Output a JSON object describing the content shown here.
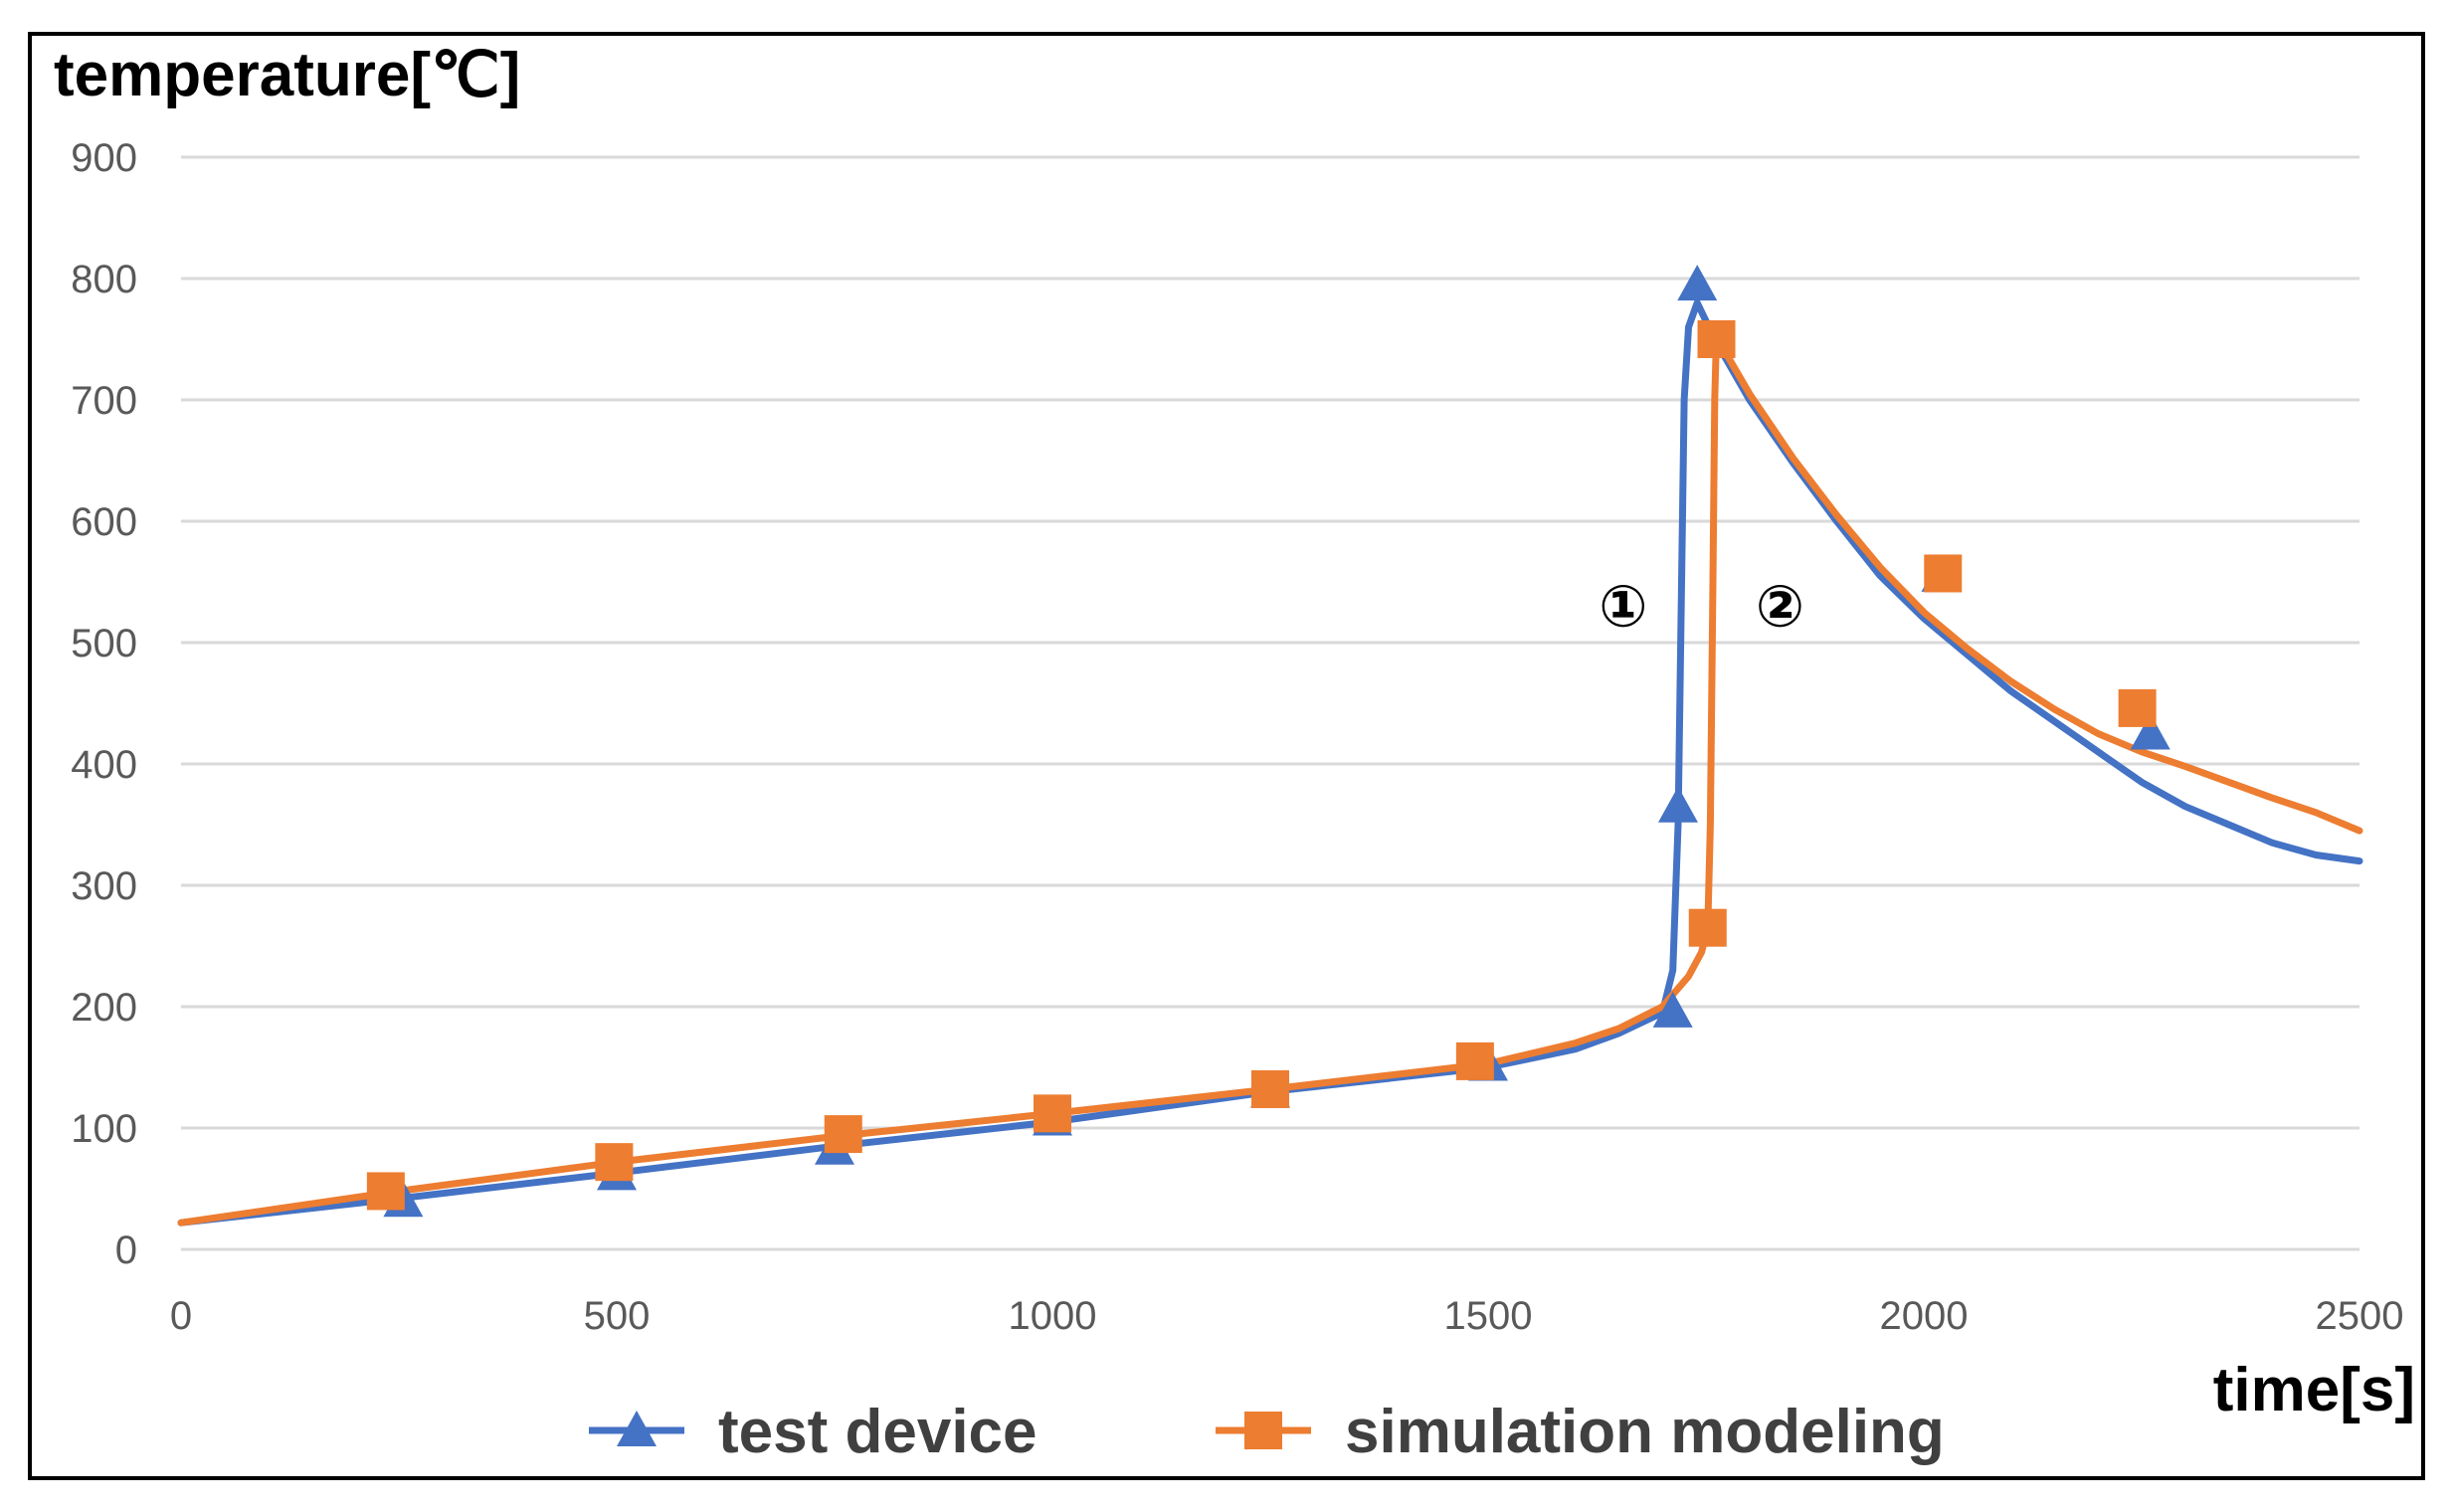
{
  "chart_data": {
    "type": "line",
    "ylabel": "temperature[℃]",
    "xlabel": "time[s]",
    "xlim": [
      0,
      2500
    ],
    "ylim": [
      0,
      900
    ],
    "xticks": [
      "0",
      "500",
      "1000",
      "1500",
      "2000",
      "2500"
    ],
    "yticks": [
      "0",
      "100",
      "200",
      "300",
      "400",
      "500",
      "600",
      "700",
      "800",
      "900"
    ],
    "grid": "horizontal",
    "legend_position": "bottom",
    "annotations": [
      {
        "text": "①",
        "x": 1655,
        "y": 530
      },
      {
        "text": "②",
        "x": 1835,
        "y": 530
      }
    ],
    "series": [
      {
        "name": "test device",
        "color": "#4472C4",
        "marker": "triangle",
        "x": [
          0,
          250,
          500,
          750,
          1000,
          1250,
          1500,
          1600,
          1650,
          1700,
          1712,
          1718,
          1722,
          1725,
          1730,
          1740,
          1760,
          1800,
          1850,
          1900,
          1950,
          2000,
          2050,
          2100,
          2150,
          2200,
          2250,
          2300,
          2350,
          2400,
          2450,
          2500
        ],
        "y": [
          22,
          42,
          63,
          85,
          105,
          130,
          150,
          165,
          178,
          195,
          230,
          350,
          550,
          700,
          760,
          780,
          750,
          700,
          648,
          600,
          555,
          520,
          490,
          460,
          435,
          410,
          385,
          365,
          350,
          335,
          325,
          320
        ],
        "marker_x": [
          255,
          500,
          750,
          1000,
          1250,
          1500,
          1712,
          1718,
          1740,
          2020,
          2260
        ],
        "marker_y": [
          40,
          62,
          83,
          107,
          130,
          152,
          196,
          365,
          795,
          555,
          425
        ]
      },
      {
        "name": "simulation modeling",
        "color": "#ED7D31",
        "marker": "square",
        "x": [
          0,
          250,
          500,
          750,
          1000,
          1250,
          1500,
          1600,
          1650,
          1700,
          1730,
          1745,
          1752,
          1755,
          1758,
          1760,
          1762,
          1800,
          1850,
          1900,
          1950,
          2000,
          2050,
          2100,
          2150,
          2200,
          2250,
          2300,
          2350,
          2400,
          2450,
          2500
        ],
        "y": [
          22,
          48,
          72,
          93,
          112,
          132,
          153,
          170,
          182,
          200,
          225,
          245,
          265,
          350,
          550,
          700,
          752,
          705,
          652,
          605,
          562,
          525,
          495,
          468,
          445,
          425,
          410,
          398,
          385,
          372,
          360,
          345
        ],
        "marker_x": [
          235,
          497,
          760,
          1000,
          1250,
          1485,
          1752,
          1762,
          2022,
          2245
        ],
        "marker_y": [
          48,
          72,
          95,
          112,
          132,
          155,
          265,
          750,
          557,
          446
        ]
      }
    ]
  }
}
